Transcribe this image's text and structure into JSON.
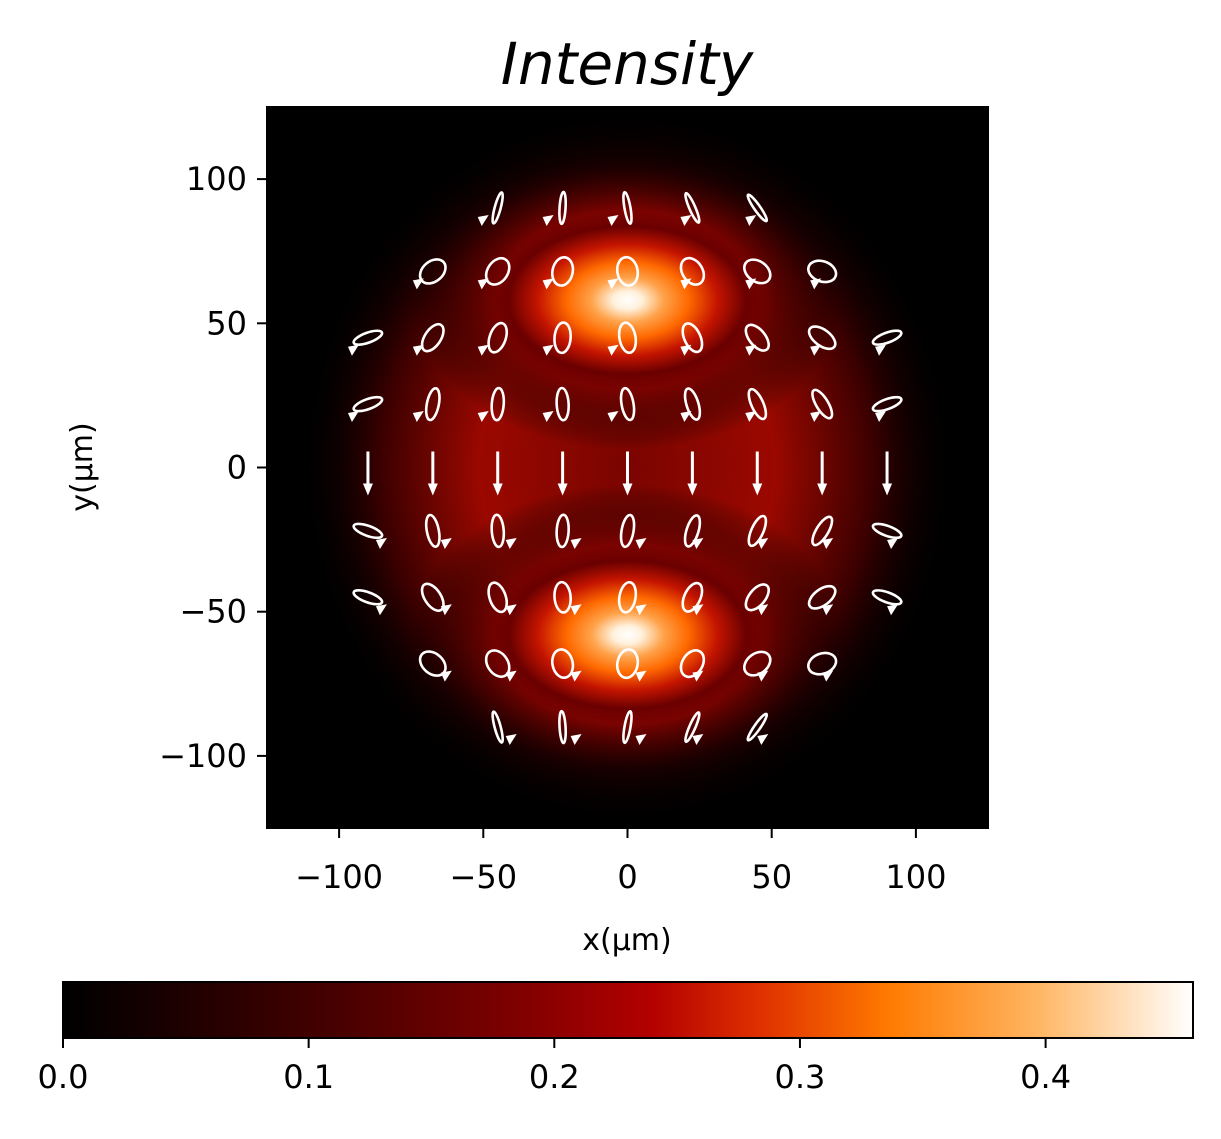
{
  "chart_data": {
    "type": "heatmap",
    "title": "Intensity",
    "xlabel": "x(μm)",
    "ylabel": "y(μm)",
    "xlim": [
      -125,
      125
    ],
    "ylim": [
      -125,
      125
    ],
    "x_ticks": [
      -100,
      -50,
      0,
      50,
      100
    ],
    "y_ticks": [
      -100,
      -50,
      0,
      50,
      100
    ],
    "x_tick_labels": [
      "−100",
      "−50",
      "0",
      "50",
      "100"
    ],
    "y_tick_labels": [
      "−100",
      "−50",
      "0",
      "50",
      "100"
    ],
    "grid": false,
    "colormap": "gist_heat",
    "colorbar": {
      "orientation": "horizontal",
      "placement": "bottom",
      "range": [
        0.0,
        0.46
      ],
      "ticks": [
        0.0,
        0.1,
        0.2,
        0.3,
        0.4
      ],
      "tick_labels": [
        "0.0",
        "0.1",
        "0.2",
        "0.3",
        "0.4"
      ]
    },
    "intensity_peaks": [
      {
        "x": 0,
        "y": 58,
        "value": 0.46
      },
      {
        "x": 0,
        "y": -58,
        "value": 0.46
      }
    ],
    "polarization_overlay": {
      "marker": "polarization-ellipse",
      "color": "#ffffff",
      "rows": [
        {
          "y": 90,
          "x": [
            -45,
            -22.5,
            0,
            22.5,
            45
          ]
        },
        {
          "y": 68,
          "x": [
            -67.5,
            -45,
            -22.5,
            0,
            22.5,
            45,
            67.5
          ]
        },
        {
          "y": 45,
          "x": [
            -90,
            -67.5,
            -45,
            -22.5,
            0,
            22.5,
            45,
            67.5,
            90
          ]
        },
        {
          "y": 22,
          "x": [
            -90,
            -67.5,
            -45,
            -22.5,
            0,
            22.5,
            45,
            67.5,
            90
          ]
        },
        {
          "y": 0,
          "x": [
            -90,
            -67.5,
            -45,
            -22.5,
            0,
            22.5,
            45,
            67.5,
            90
          ]
        },
        {
          "y": -22,
          "x": [
            -90,
            -67.5,
            -45,
            -22.5,
            0,
            22.5,
            45,
            67.5,
            90
          ]
        },
        {
          "y": -45,
          "x": [
            -90,
            -67.5,
            -45,
            -22.5,
            0,
            22.5,
            45,
            67.5,
            90
          ]
        },
        {
          "y": -68,
          "x": [
            -67.5,
            -45,
            -22.5,
            0,
            22.5,
            45,
            67.5
          ]
        },
        {
          "y": -90,
          "x": [
            -45,
            -22.5,
            0,
            22.5,
            45
          ]
        }
      ]
    }
  }
}
